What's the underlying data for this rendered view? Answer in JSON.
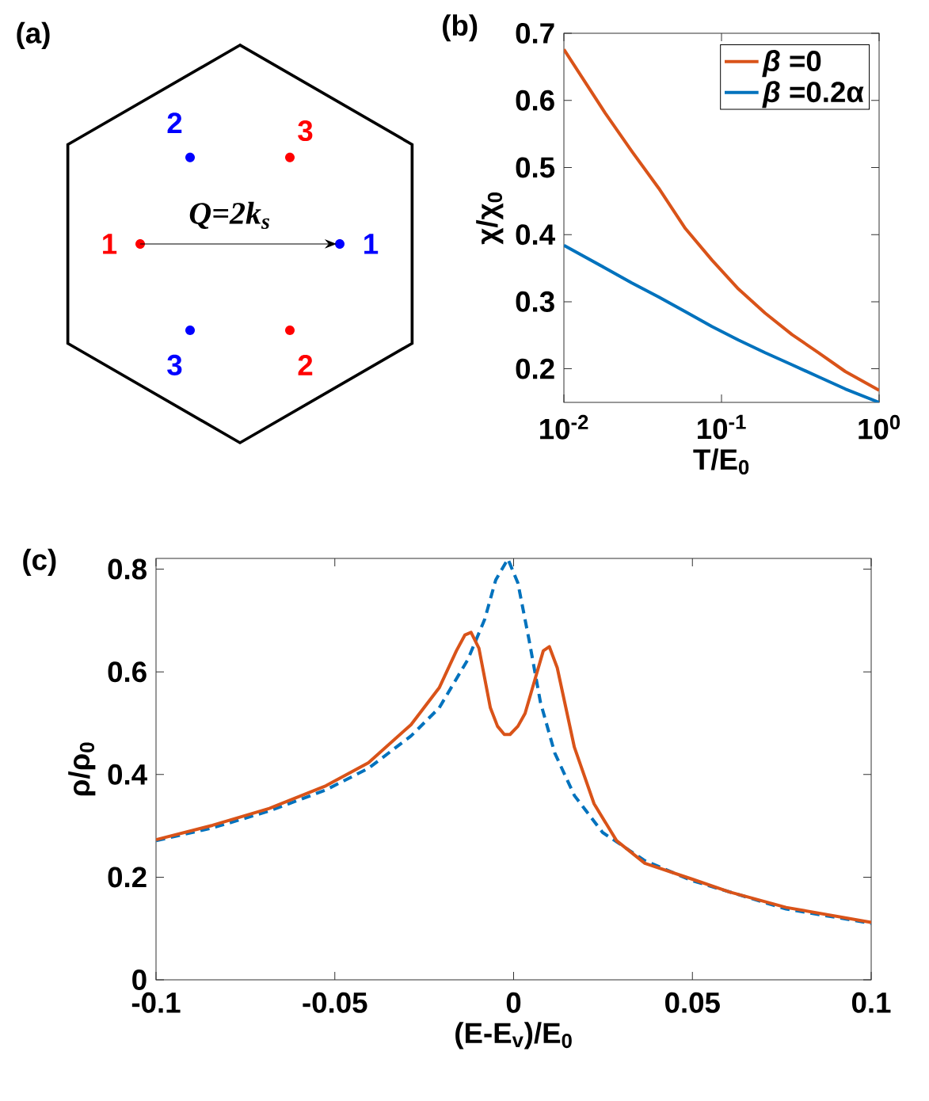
{
  "chart_data": [
    {
      "type": "other",
      "title": "(a)",
      "annotations": [
        "1",
        "2",
        "3",
        "1",
        "2",
        "3",
        "Q=2k$_{s}$"
      ],
      "colors": [
        "#ff0000",
        "#ff0000",
        "#ff0000",
        "#0000ff",
        "#0000ff",
        "#0000ff",
        "#000000"
      ]
    },
    {
      "type": "line",
      "title": "(b)",
      "xlabel": "T/E$_{0}$",
      "ylabel": "χ/χ$_{0}$",
      "log": "x",
      "xlim": [
        0.01,
        1
      ],
      "ylim": [
        0.15,
        0.7
      ],
      "xticks": [
        {
          "value": 0.01,
          "label": "10$^{-2}$"
        },
        {
          "value": 0.1,
          "label": "10$^{-1}$"
        },
        {
          "value": 1,
          "label": "10$^{0}$"
        }
      ],
      "yticks": [
        0.2,
        0.3,
        0.4,
        0.5,
        0.6,
        0.7
      ],
      "legend": "top right",
      "x": [
        0.01,
        0.0183,
        0.027,
        0.04,
        0.059,
        0.087,
        0.128,
        0.189,
        0.28,
        0.413,
        0.61,
        1
      ],
      "series": [
        {
          "name": "*β* =0",
          "color": "#d95319",
          "values": [
            0.676,
            0.581,
            0.524,
            0.469,
            0.409,
            0.362,
            0.319,
            0.283,
            0.251,
            0.224,
            0.196,
            0.168
          ]
        },
        {
          "name": "*β* =0.2α",
          "color": "#0072bd",
          "values": [
            0.384,
            0.35,
            0.328,
            0.307,
            0.285,
            0.263,
            0.243,
            0.224,
            0.206,
            0.188,
            0.17,
            0.15
          ]
        }
      ]
    },
    {
      "type": "line",
      "title": "(c)",
      "xlabel": "(E-E$_{v}$)/E$_{0}$",
      "ylabel": "ρ/ρ$_{0}$",
      "xlim": [
        -0.1,
        0.1
      ],
      "ylim": [
        0,
        0.821
      ],
      "xticks": [
        -0.1,
        -0.05,
        0,
        0.05,
        0.1
      ],
      "yticks": [
        0,
        0.2,
        0.4,
        0.6,
        0.8
      ],
      "series": [
        {
          "color": "#0072bd",
          "line_style": "dashed",
          "x": [
            -0.1,
            -0.0842,
            -0.0683,
            -0.0525,
            -0.0406,
            -0.0287,
            -0.0208,
            -0.0128,
            -0.0081,
            -0.005,
            -0.0016,
            0.0012,
            0.0043,
            0.0075,
            0.0115,
            0.017,
            0.0249,
            0.0367,
            0.05,
            0.0762,
            0.1
          ],
          "values": [
            0.271,
            0.296,
            0.329,
            0.37,
            0.412,
            0.475,
            0.53,
            0.624,
            0.702,
            0.779,
            0.82,
            0.773,
            0.663,
            0.541,
            0.442,
            0.359,
            0.287,
            0.232,
            0.193,
            0.138,
            0.11
          ]
        },
        {
          "color": "#d95319",
          "line_style": "solid",
          "x": [
            -0.1,
            -0.0842,
            -0.0683,
            -0.0525,
            -0.0406,
            -0.0287,
            -0.0208,
            -0.016,
            -0.0136,
            -0.0119,
            -0.0097,
            -0.0065,
            -0.0045,
            -0.0026,
            -0.001,
            0.0012,
            0.0032,
            0.0083,
            0.01,
            0.0122,
            0.017,
            0.0225,
            0.0288,
            0.0367,
            0.05,
            0.0604,
            0.0762,
            0.1
          ],
          "values": [
            0.273,
            0.301,
            0.334,
            0.378,
            0.423,
            0.497,
            0.569,
            0.641,
            0.672,
            0.677,
            0.646,
            0.53,
            0.494,
            0.478,
            0.478,
            0.494,
            0.519,
            0.641,
            0.649,
            0.608,
            0.453,
            0.343,
            0.271,
            0.227,
            0.196,
            0.171,
            0.141,
            0.112
          ]
        }
      ]
    }
  ]
}
